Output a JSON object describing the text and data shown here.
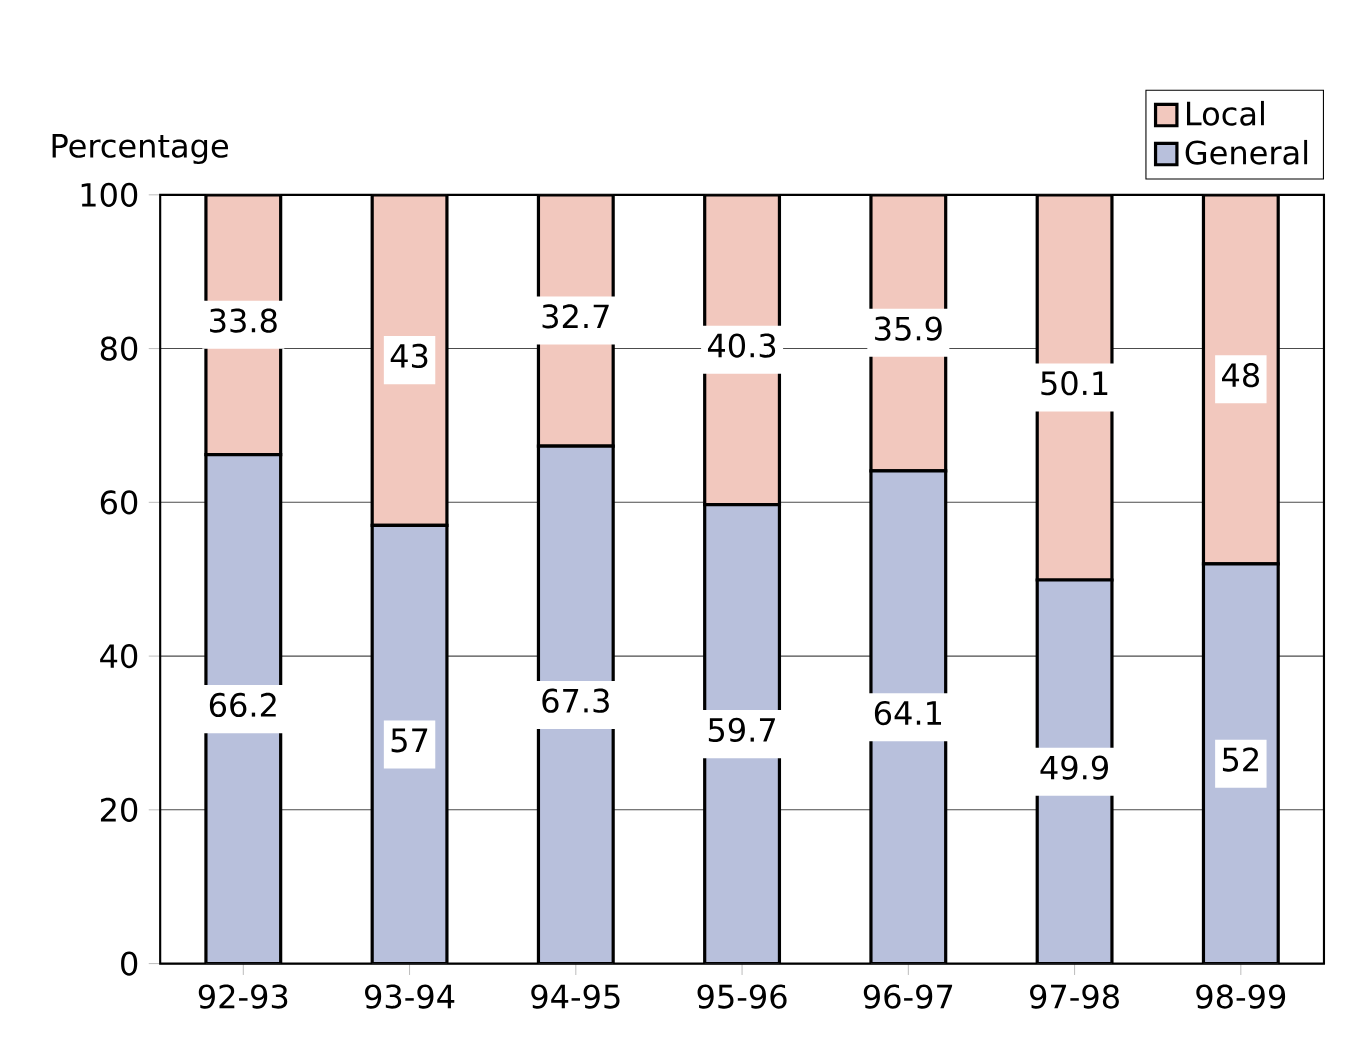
{
  "chart_data": {
    "type": "bar",
    "stacked": true,
    "ylabel": "Percentage",
    "categories": [
      "92-93",
      "93-94",
      "94-95",
      "95-96",
      "96-97",
      "97-98",
      "98-99"
    ],
    "series": [
      {
        "name": "General",
        "color": "#b8c0dc",
        "values": [
          66.2,
          57,
          67.3,
          59.7,
          64.1,
          49.9,
          52
        ]
      },
      {
        "name": "Local",
        "color": "#f2c8be",
        "values": [
          33.8,
          43,
          32.7,
          40.3,
          35.9,
          50.1,
          48
        ]
      }
    ],
    "ylim": [
      0,
      100
    ],
    "yticks": [
      0,
      20,
      40,
      60,
      80,
      100
    ],
    "grid": "y",
    "legend": "top right",
    "data_labels": true
  }
}
